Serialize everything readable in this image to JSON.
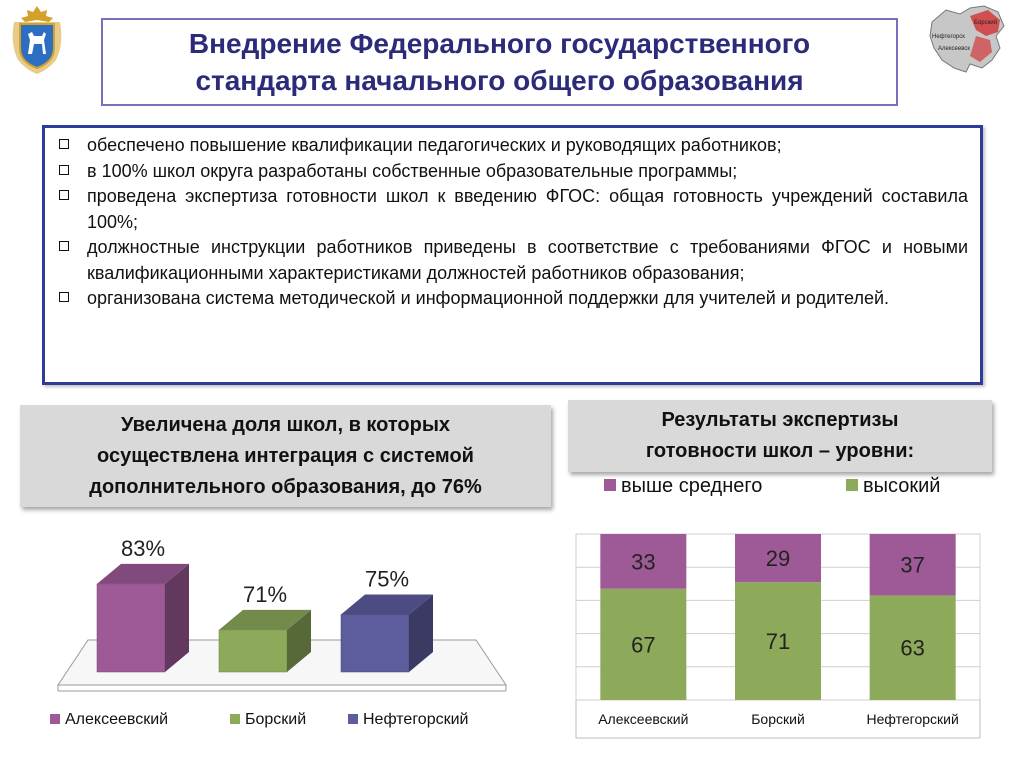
{
  "header": {
    "title_line1": "Внедрение Федерального государственного",
    "title_line2": "стандарта начального общего образования",
    "emblem_icon": "coat-of-arms-icon",
    "map_icon": "district-map-icon",
    "map_labels": [
      "Борский",
      "Нефтегорск",
      "Алексеевск"
    ]
  },
  "bullets": [
    "обеспечено повышение квалификации педагогических и руководящих работников;",
    "в 100% школ округа разработаны собственные образовательные программы;",
    "проведена экспертиза готовности школ к введению ФГОС: общая готовность учреждений составила 100%;",
    "должностные инструкции работников приведены в соответствие с требованиями ФГОС и новыми квалификационными характеристиками должностей работников образования;",
    "организована система методической и информационной поддержки для учителей и родителей."
  ],
  "left_panel": {
    "heading_lines": [
      "Увеличена доля школ, в которых",
      "осуществлена интеграция с системой",
      "дополнительного образования, до 76%"
    ]
  },
  "right_panel": {
    "heading_lines": [
      "Результаты экспертизы",
      "готовности школ – уровни:"
    ]
  },
  "colors": {
    "purple": "#9e5a97",
    "green": "#8caa5a",
    "blue": "#5d5d9e",
    "title": "#2b2b7a",
    "frame": "#2f3b9c"
  },
  "chart_data": [
    {
      "type": "bar",
      "categories": [
        "Алексеевский",
        "Борский",
        "Нефтегорский"
      ],
      "values": [
        83,
        71,
        75
      ],
      "value_labels": [
        "83%",
        "71%",
        "75%"
      ],
      "series_colors": [
        "#9e5a97",
        "#8caa5a",
        "#5d5d9e"
      ],
      "legend": [
        "Алексеевский",
        "Борский",
        "Нефтегорский"
      ],
      "legend_position": "bottom",
      "style": "3d",
      "ylim": [
        60,
        90
      ],
      "grid": false
    },
    {
      "type": "bar",
      "stacked": true,
      "categories": [
        "Алексеевский",
        "Борский",
        "Нефтегорский"
      ],
      "series": [
        {
          "name": "высокий",
          "values": [
            67,
            71,
            63
          ],
          "color": "#8caa5a"
        },
        {
          "name": "выше среднего",
          "values": [
            33,
            29,
            37
          ],
          "color": "#9e5a97"
        }
      ],
      "legend_position": "top",
      "ylim": [
        0,
        100
      ],
      "grid": true
    }
  ]
}
